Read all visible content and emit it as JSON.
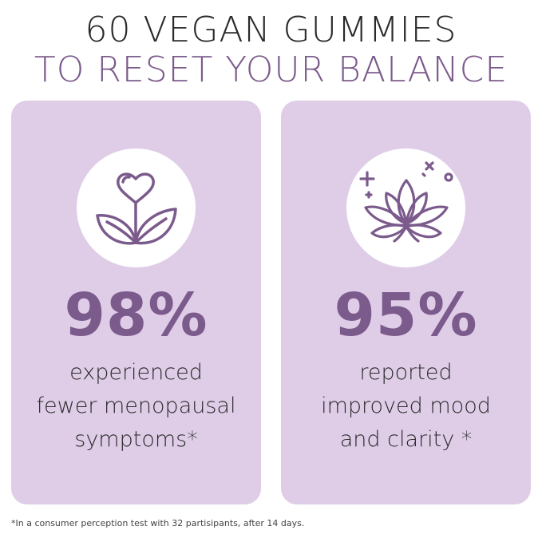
{
  "headline": {
    "line1": "60 VEGAN GUMMIES",
    "line2": "TO RESET YOUR BALANCE"
  },
  "cards": [
    {
      "icon": "heart-leaves-icon",
      "stat": "98%",
      "desc": [
        "experienced",
        "fewer menopausal",
        "symptoms*"
      ]
    },
    {
      "icon": "lotus-flower-icon",
      "stat": "95%",
      "desc": [
        "reported",
        "improved mood",
        "and clarity *"
      ]
    }
  ],
  "footnote": "*In a consumer perception test with 32 partisipants, after 14 days.",
  "colors": {
    "accent": "#7b5a8c",
    "card_bg": "#dfcde8",
    "text": "#2a2a2a"
  }
}
